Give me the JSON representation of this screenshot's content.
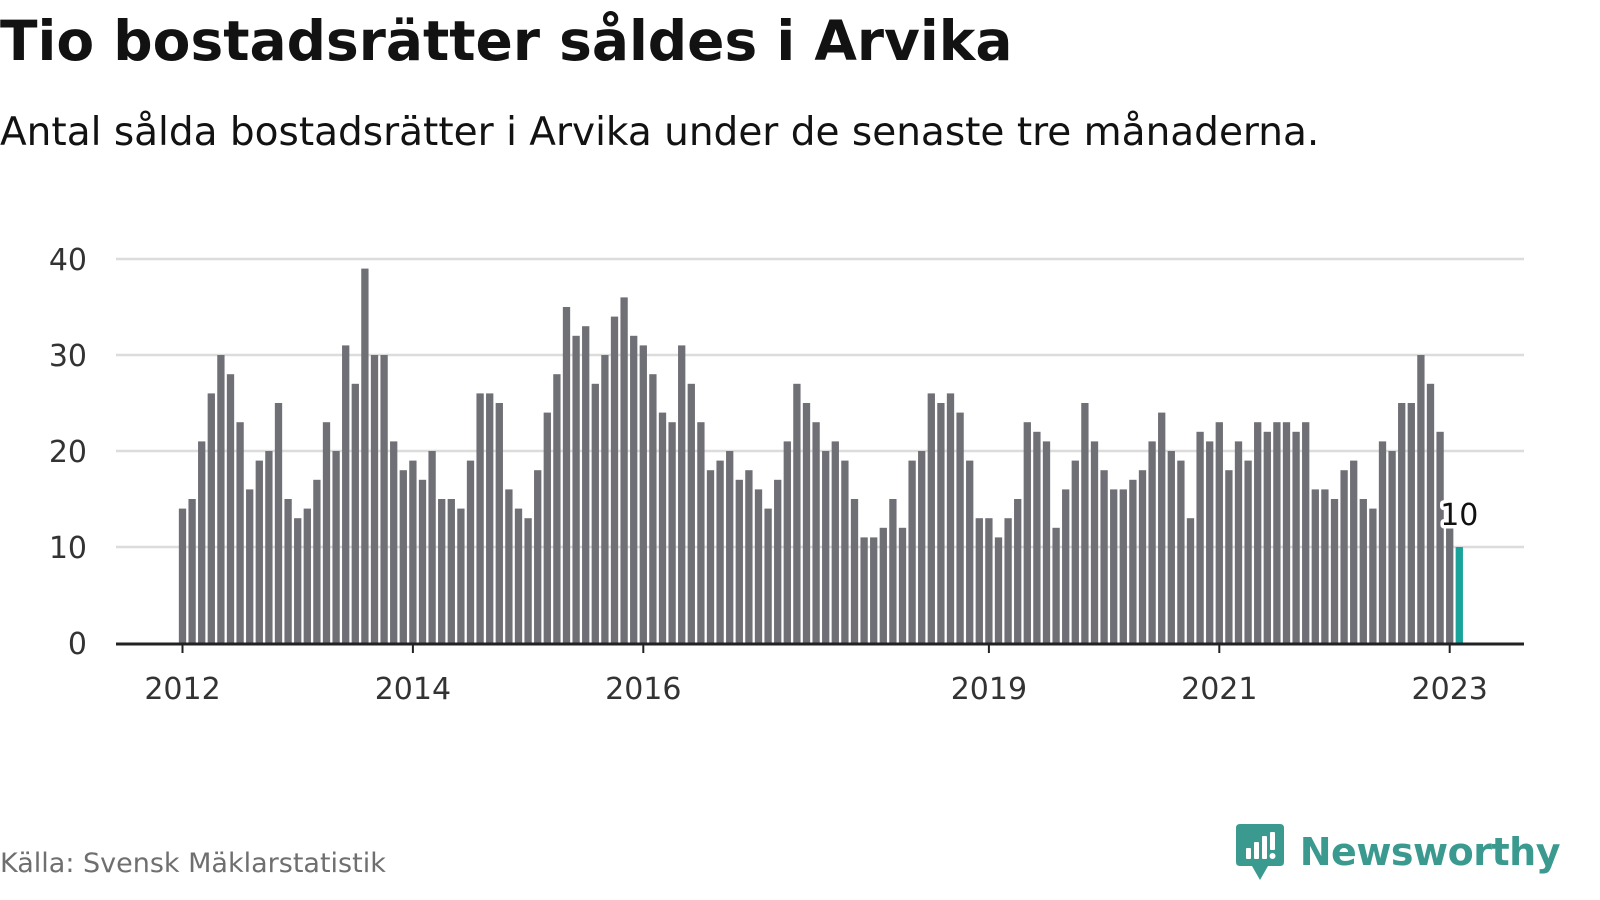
{
  "chart_data": {
    "type": "bar",
    "title": "Tio bostadsrätter såldes i Arvika",
    "subtitle": "Antal sålda bostadsrätter i Arvika under de senaste tre månaderna.",
    "ylim": [
      0,
      40
    ],
    "yticks": [
      "0",
      "10",
      "20",
      "30",
      "40"
    ],
    "grid": true,
    "x_start": "2012-01",
    "x_unit": "month",
    "xtick_labels": [
      {
        "label": "2012",
        "month": "2012-01"
      },
      {
        "label": "2014",
        "month": "2014-01"
      },
      {
        "label": "2016",
        "month": "2016-01"
      },
      {
        "label": "2019",
        "month": "2019-01"
      },
      {
        "label": "2021",
        "month": "2021-01"
      },
      {
        "label": "2023",
        "month": "2023-01"
      }
    ],
    "values": [
      14,
      15,
      21,
      26,
      30,
      28,
      23,
      16,
      19,
      20,
      25,
      15,
      13,
      14,
      17,
      23,
      20,
      31,
      27,
      39,
      30,
      30,
      21,
      18,
      19,
      17,
      20,
      15,
      15,
      14,
      19,
      26,
      26,
      25,
      16,
      14,
      13,
      18,
      24,
      28,
      35,
      32,
      33,
      27,
      30,
      34,
      36,
      32,
      31,
      28,
      24,
      23,
      31,
      27,
      23,
      18,
      19,
      20,
      17,
      18,
      16,
      14,
      17,
      21,
      27,
      25,
      23,
      20,
      21,
      19,
      15,
      11,
      11,
      12,
      15,
      12,
      19,
      20,
      26,
      25,
      26,
      24,
      19,
      13,
      13,
      11,
      13,
      15,
      23,
      22,
      21,
      12,
      16,
      19,
      25,
      21,
      18,
      16,
      16,
      17,
      18,
      21,
      24,
      20,
      19,
      13,
      22,
      21,
      23,
      18,
      21,
      19,
      23,
      22,
      23,
      23,
      22,
      23,
      16,
      16,
      15,
      18,
      19,
      15,
      14,
      21,
      20,
      25,
      25,
      30,
      27,
      22,
      12,
      10
    ],
    "highlight_last": true,
    "last_label": "10",
    "colors": {
      "bar": "#6f6f76",
      "highlight": "#1aa39b",
      "grid": "#dcdcdc",
      "axis": "#222222"
    }
  },
  "source": "Källa: Svensk Mäklarstatistik",
  "brand": {
    "name": "Newsworthy",
    "icon": "newsworthy-logo-icon",
    "color": "#3a9a8f"
  }
}
